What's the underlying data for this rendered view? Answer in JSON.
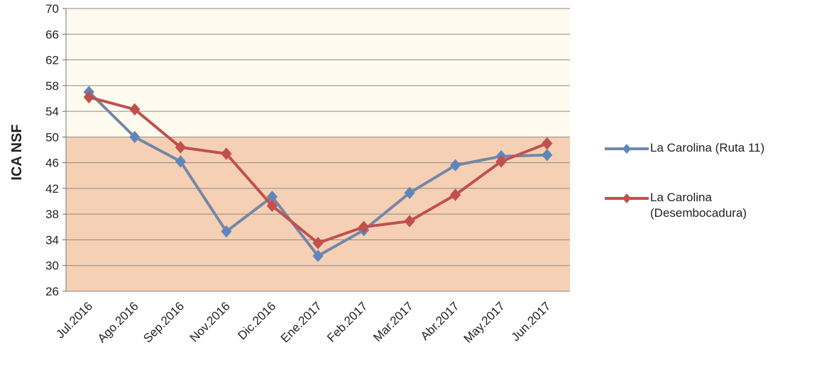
{
  "chart_data": {
    "type": "line",
    "y_label": "ICA NSF",
    "categories": [
      "Jul.2016",
      "Ago.2016",
      "Sep.2016",
      "Nov.2016",
      "Dic.2016",
      "Ene.2017",
      "Feb.2017",
      "Mar.2017",
      "Abr.2017",
      "May.2017",
      "Jun.2017"
    ],
    "series": [
      {
        "name": "La Carolina (Ruta 11)",
        "color": "#7487a6",
        "marker_color": "#5b86c0",
        "values": [
          57,
          50,
          46.2,
          35.3,
          40.7,
          31.5,
          35.5,
          41.3,
          45.6,
          47,
          47.2
        ]
      },
      {
        "name": "La Carolina (Desembocadura)",
        "color": "#c0504d",
        "marker_color": "#c0504d",
        "values": [
          56.2,
          54.3,
          48.4,
          47.4,
          39.3,
          33.5,
          36,
          36.9,
          41,
          46.2,
          49
        ]
      }
    ],
    "ylim": [
      26,
      70
    ],
    "yticks": [
      26,
      30,
      34,
      38,
      42,
      46,
      50,
      54,
      58,
      62,
      66,
      70
    ],
    "bands": [
      {
        "from": 26,
        "to": 50,
        "color": "#f6d0b4"
      },
      {
        "from": 50,
        "to": 70,
        "color": "#fefaee"
      }
    ],
    "grid": true,
    "legend": "right"
  }
}
